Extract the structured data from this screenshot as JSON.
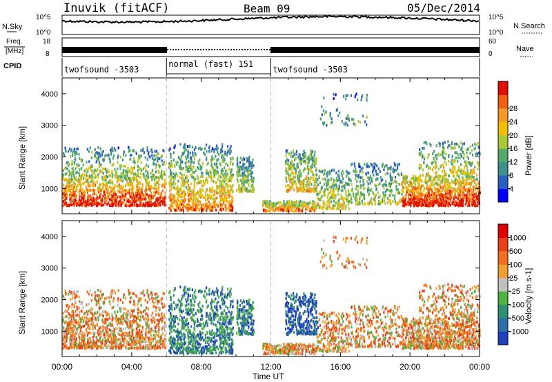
{
  "header": {
    "station": "Inuvik (fitACF)",
    "beam": "Beam 09",
    "date": "05/Dec/2014"
  },
  "left_labels": {
    "nsky": "N.Sky",
    "freq_line1": "Freq.",
    "freq_line2": "[MHz]",
    "cpid": "CPID"
  },
  "right_labels": {
    "nsearch": "N.Search",
    "nave": "Nave"
  },
  "noise_axis": {
    "top": "10^5",
    "bottom": "10^0"
  },
  "freq_axis": {
    "top": "18",
    "bottom": "8"
  },
  "nave_axis": {
    "top": "60",
    "bottom": "0"
  },
  "cpid_segments": [
    {
      "label": "twofsound -3503",
      "start": 0,
      "end": 6
    },
    {
      "label": "normal (fast) 151",
      "start": 6,
      "end": 12
    },
    {
      "label": "twofsound -3503",
      "start": 12,
      "end": 24
    }
  ],
  "chart_data": [
    {
      "type": "heatmap",
      "name": "power",
      "ylabel": "Slant Range [km]",
      "xlabel": "Time UT",
      "xlim": [
        0,
        24
      ],
      "ylim": [
        200,
        4500
      ],
      "x_ticks": [
        "00:00",
        "04:00",
        "08:00",
        "12:00",
        "16:00",
        "20:00",
        "00:00"
      ],
      "y_ticks": [
        1000,
        2000,
        3000,
        4000
      ],
      "colorbar": {
        "title": "Power [dB]",
        "ticks": [
          4,
          8,
          12,
          16,
          20,
          24,
          28
        ],
        "colors": [
          "#0000ff",
          "#2c5fc2",
          "#3f8f8a",
          "#53a86b",
          "#a9c838",
          "#f0c000",
          "#f59a2a",
          "#f06010",
          "#e01000"
        ]
      }
    },
    {
      "type": "heatmap",
      "name": "velocity",
      "ylabel": "Slant Range [km]",
      "xlabel": "Time UT",
      "xlim": [
        0,
        24
      ],
      "ylim": [
        200,
        4500
      ],
      "x_ticks": [
        "00:00",
        "04:00",
        "08:00",
        "12:00",
        "16:00",
        "20:00",
        "00:00"
      ],
      "y_ticks": [
        1000,
        2000,
        3000,
        4000
      ],
      "colorbar": {
        "title": "Velocity [m s-1]",
        "ticks": [
          "1000",
          "500",
          "100",
          "25",
          "-25",
          "-100",
          "-500",
          "-1000"
        ],
        "colors": [
          "#2040c0",
          "#2f6fa8",
          "#2f8f6f",
          "#50b040",
          "#c0c0c0",
          "#f0a030",
          "#f07020",
          "#e84018",
          "#e00000"
        ]
      }
    }
  ]
}
